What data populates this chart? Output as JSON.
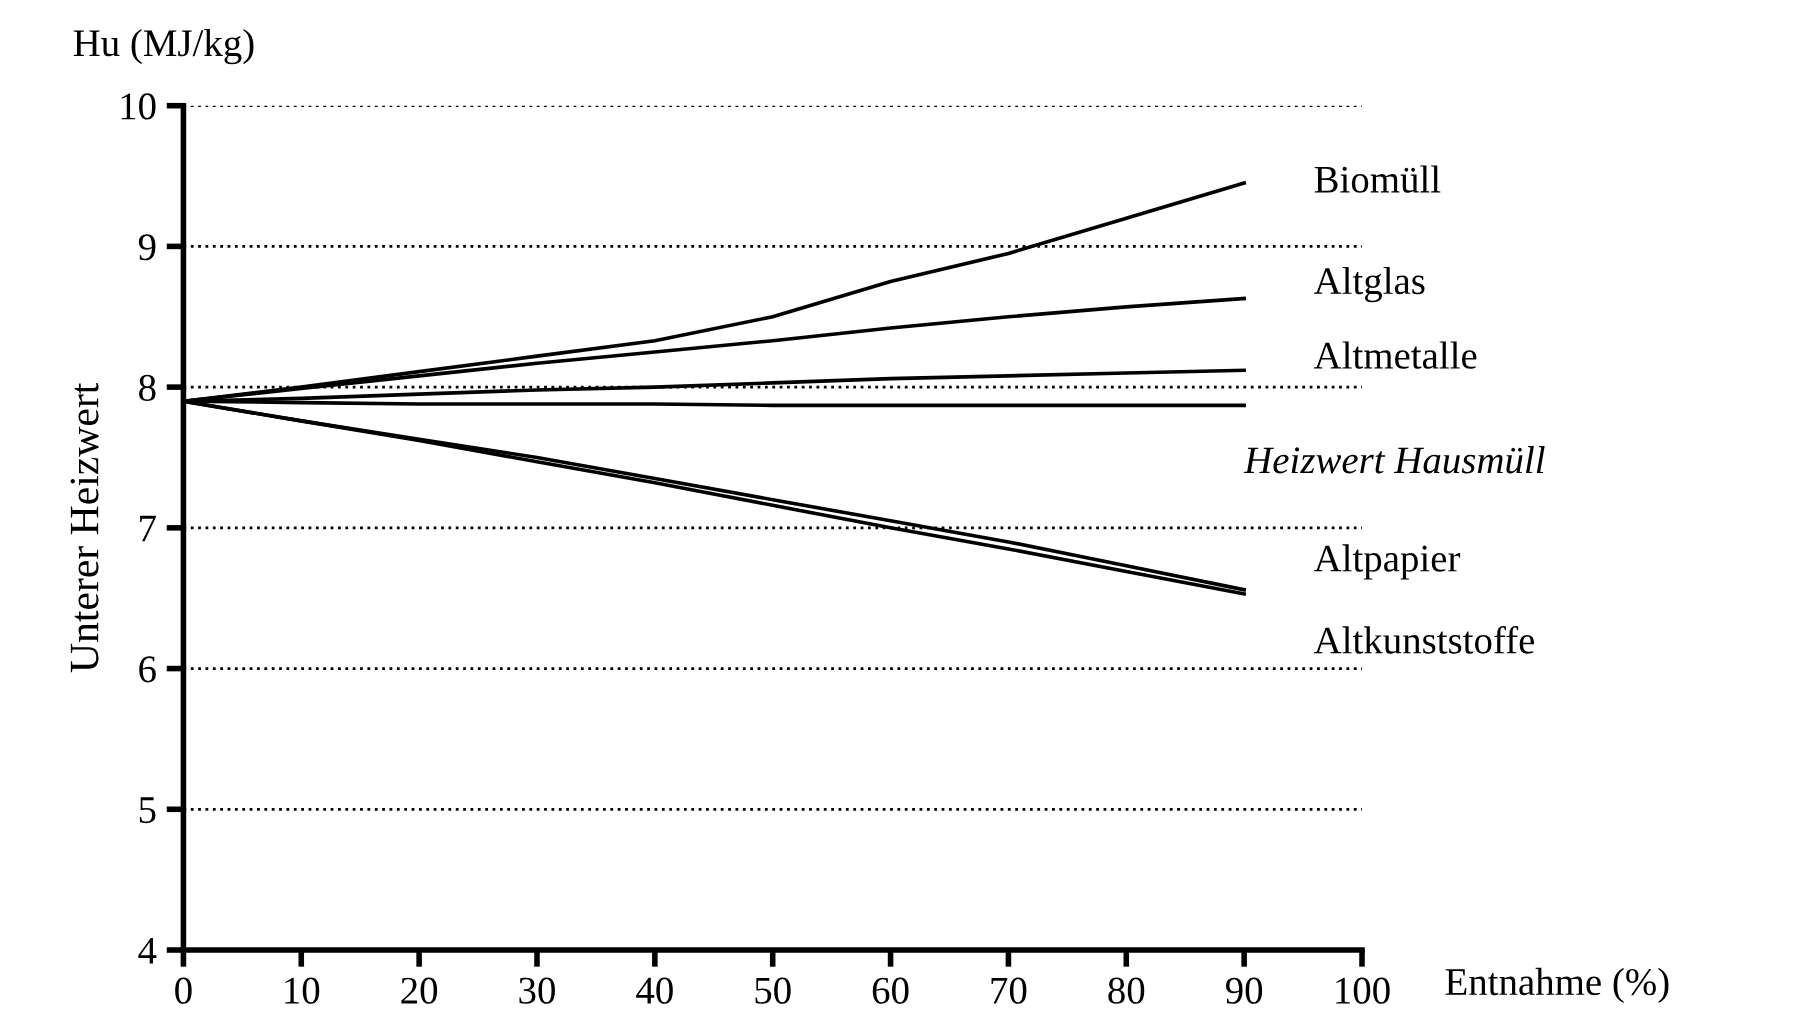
{
  "chart_data": {
    "type": "line",
    "ylabel": "Unterer Heizwert",
    "xlabel": "Entnahme (%)",
    "annotations": [
      "Hu (MJ/kg)"
    ],
    "x": [
      0,
      10,
      20,
      30,
      40,
      50,
      60,
      70,
      80,
      90
    ],
    "series": [
      {
        "name": "Biomüll",
        "color": "#000000",
        "values": [
          7.9,
          8.0,
          8.11,
          8.22,
          8.33,
          8.5,
          8.75,
          8.95,
          9.2,
          9.45
        ]
      },
      {
        "name": "Altglas",
        "color": "#000000",
        "values": [
          7.9,
          7.99,
          8.08,
          8.17,
          8.25,
          8.33,
          8.42,
          8.5,
          8.57,
          8.63
        ]
      },
      {
        "name": "Altmetalle",
        "color": "#000000",
        "values": [
          7.9,
          7.92,
          7.95,
          7.98,
          8.0,
          8.03,
          8.06,
          8.08,
          8.1,
          8.12
        ]
      },
      {
        "name": "Heizwert Hausmüll",
        "color": "#000000",
        "values": [
          7.9,
          7.89,
          7.88,
          7.88,
          7.88,
          7.87,
          7.87,
          7.87,
          7.87,
          7.87
        ]
      },
      {
        "name": "Altpapier",
        "color": "#000000",
        "values": [
          7.9,
          7.76,
          7.63,
          7.5,
          7.35,
          7.2,
          7.05,
          6.9,
          6.73,
          6.56
        ]
      },
      {
        "name": "Altkunststoffe",
        "color": "#000000",
        "values": [
          7.9,
          7.76,
          7.62,
          7.47,
          7.32,
          7.16,
          7.0,
          6.85,
          6.69,
          6.53
        ]
      }
    ],
    "xlim": [
      0,
      100
    ],
    "xticks": [
      0,
      10,
      20,
      30,
      40,
      50,
      60,
      70,
      80,
      90,
      100
    ],
    "ylim": [
      4,
      10
    ],
    "yticks": [
      4,
      5,
      6,
      7,
      8,
      9,
      10
    ],
    "grid": "y",
    "legend": false,
    "marker": "none",
    "line_style": "solid"
  }
}
